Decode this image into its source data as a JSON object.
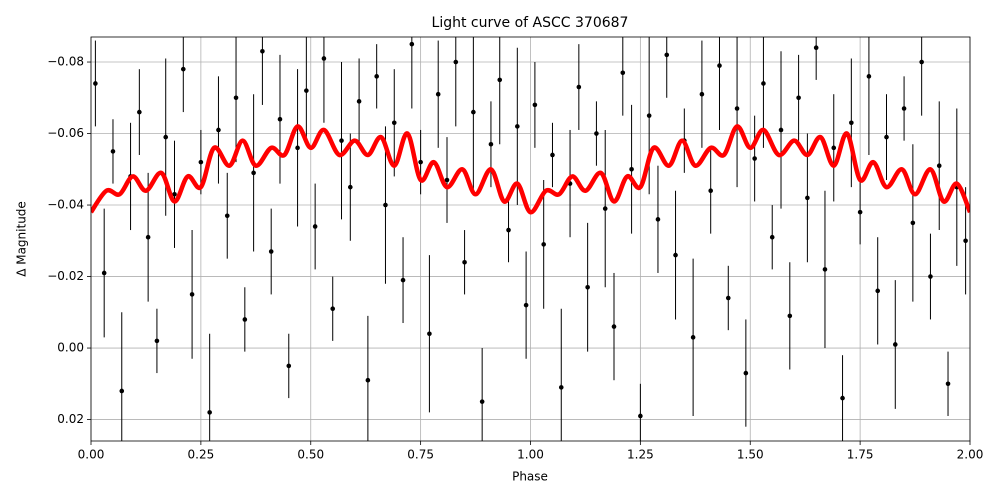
{
  "chart_data": {
    "type": "scatter",
    "title": "Light curve of ASCC 370687",
    "x_label": "Phase",
    "y_label": "Δ Magnitude",
    "xlim": [
      0,
      2
    ],
    "ylim": [
      0.026,
      -0.087
    ],
    "xticks": [
      {
        "value": 0,
        "label": "0.00"
      },
      {
        "value": 0.25,
        "label": "0.25"
      },
      {
        "value": 0.5,
        "label": "0.50"
      },
      {
        "value": 0.75,
        "label": "0.75"
      },
      {
        "value": 1,
        "label": "1.00"
      },
      {
        "value": 1.25,
        "label": "1.25"
      },
      {
        "value": 1.5,
        "label": "1.50"
      },
      {
        "value": 1.75,
        "label": "1.75"
      },
      {
        "value": 2,
        "label": "2.00"
      }
    ],
    "yticks": [
      {
        "value": -0.08,
        "label": "−0.08"
      },
      {
        "value": -0.06,
        "label": "−0.06"
      },
      {
        "value": -0.04,
        "label": "−0.04"
      },
      {
        "value": -0.02,
        "label": "−0.02"
      },
      {
        "value": 0,
        "label": "0.00"
      },
      {
        "value": 0.02,
        "label": "0.02"
      }
    ],
    "grid": true,
    "series": [
      {
        "kind": "errorbar",
        "color": "#000000",
        "x": [
          0.01,
          0.03,
          0.05,
          0.07,
          0.09,
          0.11,
          0.13,
          0.15,
          0.17,
          0.19,
          0.21,
          0.23,
          0.25,
          0.27,
          0.29,
          0.31,
          0.33,
          0.35,
          0.37,
          0.39,
          0.41,
          0.43,
          0.45,
          0.47,
          0.49,
          0.51,
          0.53,
          0.55,
          0.57,
          0.59,
          0.61,
          0.63,
          0.65,
          0.67,
          0.69,
          0.71,
          0.73,
          0.75,
          0.77,
          0.79,
          0.81,
          0.83,
          0.85,
          0.87,
          0.89,
          0.91,
          0.93,
          0.95,
          0.97,
          0.99,
          1.01,
          1.03,
          1.05,
          1.07,
          1.09,
          1.11,
          1.13,
          1.15,
          1.17,
          1.19,
          1.21,
          1.23,
          1.25,
          1.27,
          1.29,
          1.31,
          1.33,
          1.35,
          1.37,
          1.39,
          1.41,
          1.43,
          1.45,
          1.47,
          1.49,
          1.51,
          1.53,
          1.55,
          1.57,
          1.59,
          1.61,
          1.63,
          1.65,
          1.67,
          1.69,
          1.71,
          1.73,
          1.75,
          1.77,
          1.79,
          1.81,
          1.83,
          1.85,
          1.87,
          1.89,
          1.91,
          1.93,
          1.95,
          1.97,
          1.99
        ],
        "values": [
          -0.074,
          -0.021,
          -0.055,
          0.012,
          -0.048,
          -0.066,
          -0.031,
          -0.002,
          -0.059,
          -0.043,
          -0.078,
          -0.015,
          -0.052,
          0.018,
          -0.061,
          -0.037,
          -0.07,
          -0.008,
          -0.049,
          -0.083,
          -0.027,
          -0.064,
          0.005,
          -0.056,
          -0.072,
          -0.034,
          -0.081,
          -0.011,
          -0.058,
          -0.045,
          -0.069,
          0.009,
          -0.076,
          -0.04,
          -0.063,
          -0.019,
          -0.085,
          -0.052,
          -0.004,
          -0.071,
          -0.047,
          -0.08,
          -0.024,
          -0.066,
          0.015,
          -0.057,
          -0.075,
          -0.033,
          -0.062,
          -0.012,
          -0.068,
          -0.029,
          -0.054,
          0.011,
          -0.046,
          -0.073,
          -0.017,
          -0.06,
          -0.039,
          -0.006,
          -0.077,
          -0.05,
          0.019,
          -0.065,
          -0.036,
          -0.082,
          -0.026,
          -0.058,
          -0.003,
          -0.071,
          -0.044,
          -0.079,
          -0.014,
          -0.067,
          0.007,
          -0.053,
          -0.074,
          -0.031,
          -0.061,
          -0.009,
          -0.07,
          -0.042,
          -0.084,
          -0.022,
          -0.056,
          0.014,
          -0.063,
          -0.038,
          -0.076,
          -0.016,
          -0.059,
          -0.001,
          -0.067,
          -0.035,
          -0.08,
          -0.02,
          -0.051,
          0.01,
          -0.045,
          -0.03
        ],
        "errors": [
          0.012,
          0.018,
          0.009,
          0.022,
          0.015,
          0.012,
          0.018,
          0.009,
          0.022,
          0.015,
          0.012,
          0.018,
          0.009,
          0.022,
          0.015,
          0.012,
          0.018,
          0.009,
          0.022,
          0.015,
          0.012,
          0.018,
          0.009,
          0.022,
          0.015,
          0.012,
          0.018,
          0.009,
          0.022,
          0.015,
          0.012,
          0.018,
          0.009,
          0.022,
          0.015,
          0.012,
          0.018,
          0.009,
          0.022,
          0.015,
          0.012,
          0.018,
          0.009,
          0.022,
          0.015,
          0.012,
          0.018,
          0.009,
          0.022,
          0.015,
          0.012,
          0.018,
          0.009,
          0.022,
          0.015,
          0.012,
          0.018,
          0.009,
          0.022,
          0.015,
          0.012,
          0.018,
          0.009,
          0.022,
          0.015,
          0.012,
          0.018,
          0.009,
          0.022,
          0.015,
          0.012,
          0.018,
          0.009,
          0.022,
          0.015,
          0.012,
          0.018,
          0.009,
          0.022,
          0.015,
          0.012,
          0.018,
          0.009,
          0.022,
          0.015,
          0.012,
          0.018,
          0.009,
          0.022,
          0.015,
          0.012,
          0.018,
          0.009,
          0.022,
          0.015,
          0.012,
          0.018,
          0.009,
          0.022,
          0.015
        ]
      },
      {
        "kind": "line",
        "color": "#ff0000",
        "x": [
          0,
          0.035,
          0.065,
          0.095,
          0.125,
          0.16,
          0.19,
          0.22,
          0.25,
          0.28,
          0.315,
          0.345,
          0.375,
          0.41,
          0.44,
          0.47,
          0.5,
          0.53,
          0.565,
          0.6,
          0.63,
          0.66,
          0.69,
          0.72,
          0.75,
          0.78,
          0.81,
          0.845,
          0.875,
          0.91,
          0.94,
          0.97,
          1,
          1.035,
          1.065,
          1.095,
          1.125,
          1.16,
          1.19,
          1.22,
          1.25,
          1.28,
          1.315,
          1.345,
          1.375,
          1.41,
          1.44,
          1.47,
          1.5,
          1.53,
          1.565,
          1.6,
          1.63,
          1.66,
          1.69,
          1.72,
          1.75,
          1.78,
          1.81,
          1.845,
          1.875,
          1.91,
          1.94,
          1.97,
          2
        ],
        "values": [
          -0.038,
          -0.044,
          -0.043,
          -0.048,
          -0.044,
          -0.049,
          -0.041,
          -0.048,
          -0.045,
          -0.056,
          -0.051,
          -0.058,
          -0.051,
          -0.056,
          -0.054,
          -0.062,
          -0.056,
          -0.061,
          -0.054,
          -0.058,
          -0.054,
          -0.059,
          -0.051,
          -0.06,
          -0.047,
          -0.052,
          -0.045,
          -0.05,
          -0.043,
          -0.05,
          -0.041,
          -0.046,
          -0.038,
          -0.044,
          -0.043,
          -0.048,
          -0.044,
          -0.049,
          -0.041,
          -0.048,
          -0.045,
          -0.056,
          -0.051,
          -0.058,
          -0.051,
          -0.056,
          -0.054,
          -0.062,
          -0.056,
          -0.061,
          -0.054,
          -0.058,
          -0.054,
          -0.059,
          -0.051,
          -0.06,
          -0.047,
          -0.052,
          -0.045,
          -0.05,
          -0.043,
          -0.05,
          -0.041,
          -0.046,
          -0.038
        ]
      }
    ]
  }
}
